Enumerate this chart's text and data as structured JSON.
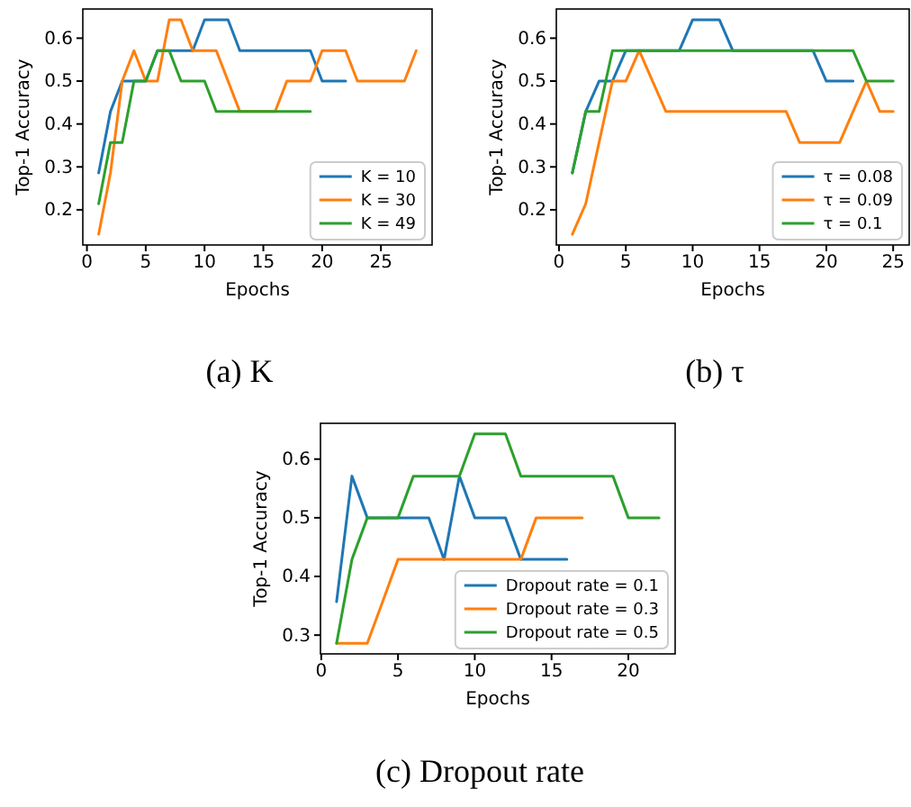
{
  "chart_data": [
    {
      "type": "line",
      "title": "(a) K",
      "xlabel": "Epochs",
      "ylabel": "Top-1 Accuracy",
      "xlim": [
        -0.35,
        29.35
      ],
      "ylim": [
        0.118,
        0.668
      ],
      "xticks": [
        0,
        5,
        10,
        15,
        20,
        25
      ],
      "yticks": [
        0.2,
        0.3,
        0.4,
        0.5,
        0.6
      ],
      "legend": "lower right",
      "grid": false,
      "marker": "none",
      "line_style": "solid",
      "series": [
        {
          "name": "K = 10",
          "color": "#1f77b4",
          "x": [
            1,
            2,
            3,
            4,
            5,
            6,
            7,
            8,
            9,
            10,
            11,
            12,
            13,
            14,
            15,
            16,
            17,
            18,
            19,
            20,
            21,
            22
          ],
          "values": [
            0.286,
            0.429,
            0.5,
            0.5,
            0.5,
            0.571,
            0.571,
            0.571,
            0.571,
            0.643,
            0.643,
            0.643,
            0.571,
            0.571,
            0.571,
            0.571,
            0.571,
            0.571,
            0.571,
            0.5,
            0.5,
            0.5
          ]
        },
        {
          "name": "K = 30",
          "color": "#ff7f0e",
          "x": [
            1,
            2,
            3,
            4,
            5,
            6,
            7,
            8,
            9,
            10,
            11,
            12,
            13,
            14,
            15,
            16,
            17,
            18,
            19,
            20,
            21,
            22,
            23,
            24,
            25,
            26,
            27,
            28
          ],
          "values": [
            0.143,
            0.286,
            0.5,
            0.571,
            0.5,
            0.5,
            0.643,
            0.643,
            0.571,
            0.571,
            0.571,
            0.5,
            0.429,
            null,
            null,
            0.429,
            0.5,
            0.5,
            0.5,
            0.571,
            0.571,
            0.571,
            0.5,
            0.5,
            0.5,
            0.5,
            0.5,
            0.571
          ]
        },
        {
          "name": "K = 49",
          "color": "#2ca02c",
          "x": [
            1,
            2,
            3,
            4,
            5,
            6,
            7,
            8,
            9,
            10,
            11,
            12,
            13,
            14,
            15,
            16,
            17,
            18,
            19
          ],
          "values": [
            0.214,
            0.357,
            0.357,
            0.5,
            0.5,
            0.571,
            0.571,
            0.5,
            0.5,
            0.5,
            0.429,
            0.429,
            0.429,
            0.429,
            0.429,
            0.429,
            0.429,
            0.429,
            0.429
          ]
        }
      ]
    },
    {
      "type": "line",
      "title": "(b) τ",
      "xlabel": "Epochs",
      "ylabel": "Top-1 Accuracy",
      "xlim": [
        -0.2,
        26.2
      ],
      "ylim": [
        0.118,
        0.668
      ],
      "xticks": [
        0,
        5,
        10,
        15,
        20,
        25
      ],
      "yticks": [
        0.2,
        0.3,
        0.4,
        0.5,
        0.6
      ],
      "legend": "lower right",
      "grid": false,
      "marker": "none",
      "line_style": "solid",
      "series": [
        {
          "name": "τ = 0.08",
          "color": "#1f77b4",
          "x": [
            1,
            2,
            3,
            4,
            5,
            6,
            7,
            8,
            9,
            10,
            11,
            12,
            13,
            14,
            15,
            16,
            17,
            18,
            19,
            20,
            21,
            22
          ],
          "values": [
            0.286,
            0.429,
            0.5,
            0.5,
            0.571,
            0.571,
            0.571,
            0.571,
            0.571,
            0.643,
            0.643,
            0.643,
            0.571,
            0.571,
            0.571,
            0.571,
            0.571,
            0.571,
            0.571,
            0.5,
            0.5,
            0.5
          ]
        },
        {
          "name": "τ = 0.09",
          "color": "#ff7f0e",
          "x": [
            1,
            2,
            3,
            4,
            5,
            6,
            7,
            8,
            9,
            10,
            11,
            12,
            13,
            14,
            15,
            16,
            17,
            18,
            19,
            20,
            21,
            22,
            23,
            24,
            25
          ],
          "values": [
            0.143,
            0.214,
            0.357,
            0.5,
            0.5,
            0.571,
            0.5,
            0.429,
            0.429,
            0.429,
            0.429,
            0.429,
            0.429,
            0.429,
            0.429,
            0.429,
            0.429,
            0.357,
            0.357,
            0.357,
            0.357,
            0.429,
            0.5,
            0.429,
            0.429
          ]
        },
        {
          "name": "τ = 0.1",
          "color": "#2ca02c",
          "x": [
            1,
            2,
            3,
            4,
            5,
            6,
            7,
            8,
            9,
            10,
            11,
            12,
            13,
            14,
            15,
            16,
            17,
            18,
            19,
            20,
            21,
            22,
            23,
            24,
            25
          ],
          "values": [
            0.286,
            0.429,
            0.429,
            0.571,
            0.571,
            0.571,
            0.571,
            0.571,
            0.571,
            0.571,
            0.571,
            0.571,
            0.571,
            0.571,
            0.571,
            0.571,
            0.571,
            0.571,
            0.571,
            0.571,
            0.571,
            0.571,
            0.5,
            0.5,
            0.5
          ]
        }
      ]
    },
    {
      "type": "line",
      "title": "(c) Dropout rate",
      "xlabel": "Epochs",
      "ylabel": "Top-1 Accuracy",
      "xlim": [
        -0.05,
        23.05
      ],
      "ylim": [
        0.268,
        0.661
      ],
      "xticks": [
        0,
        5,
        10,
        15,
        20
      ],
      "yticks": [
        0.3,
        0.4,
        0.5,
        0.6
      ],
      "legend": "lower right",
      "grid": false,
      "marker": "none",
      "line_style": "solid",
      "series": [
        {
          "name": "Dropout rate = 0.1",
          "color": "#1f77b4",
          "x": [
            1,
            2,
            3,
            4,
            5,
            6,
            7,
            8,
            9,
            10,
            11,
            12,
            13,
            14,
            15,
            16
          ],
          "values": [
            0.357,
            0.571,
            0.5,
            0.5,
            0.5,
            0.5,
            0.5,
            0.429,
            0.571,
            0.5,
            0.5,
            0.5,
            0.429,
            0.429,
            0.429,
            0.429
          ]
        },
        {
          "name": "Dropout rate = 0.3",
          "color": "#ff7f0e",
          "x": [
            1,
            2,
            3,
            4,
            5,
            6,
            7,
            8,
            9,
            10,
            11,
            12,
            13,
            14,
            15,
            16,
            17
          ],
          "values": [
            0.286,
            0.286,
            0.286,
            0.357,
            0.429,
            0.429,
            0.429,
            0.429,
            0.429,
            0.429,
            0.429,
            0.429,
            0.429,
            0.5,
            0.5,
            0.5,
            0.5
          ]
        },
        {
          "name": "Dropout rate = 0.5",
          "color": "#2ca02c",
          "x": [
            1,
            2,
            3,
            4,
            5,
            6,
            7,
            8,
            9,
            10,
            11,
            12,
            13,
            14,
            15,
            16,
            17,
            18,
            19,
            20,
            21,
            22
          ],
          "values": [
            0.286,
            0.429,
            0.5,
            0.5,
            0.5,
            0.571,
            0.571,
            0.571,
            0.571,
            0.643,
            0.643,
            0.643,
            0.571,
            0.571,
            0.571,
            0.571,
            0.571,
            0.571,
            0.571,
            0.5,
            0.5,
            0.5
          ]
        }
      ]
    }
  ]
}
